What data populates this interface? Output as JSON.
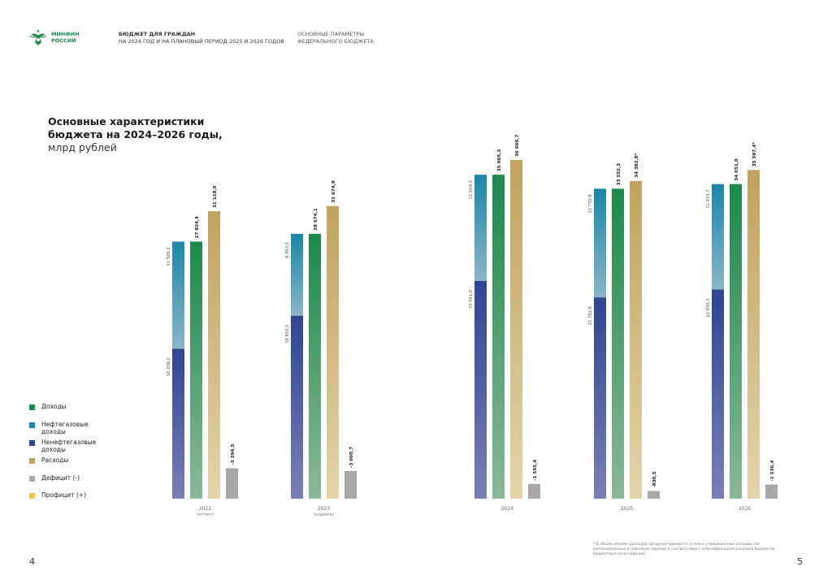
{
  "header": {
    "brand_line1": "МИНФИН",
    "brand_line2": "РОССИИ",
    "title_line1": "БЮДЖЕТ ДЛЯ ГРАЖДАН",
    "title_line2": "НА 2024 ГОД И НА ПЛАНОВЫЙ ПЕРИОД 2025 И 2026 ГОДОВ",
    "section_line1": "ОСНОВНЫЕ ПАРАМЕТРЫ",
    "section_line2": "ФЕДЕРАЛЬНОГО БЮДЖЕТА"
  },
  "title_line1": "Основные характеристики",
  "title_line2": "бюджета на 2024–2026 годы,",
  "unit": "млрд рублей",
  "legend": [
    {
      "label": "Доходы",
      "color": "#1b8a4a"
    },
    {
      "label": "Нефтегазовые доходы",
      "color": "#1a86a8"
    },
    {
      "label": "Ненефтегазовые доходы",
      "color": "#2e4592"
    },
    {
      "label": "Расходы",
      "color": "#c0a35e"
    },
    {
      "label": "Дефицит (-)",
      "color": "#a8a8ab"
    },
    {
      "label": "Профицит (+)",
      "color": "#f2c74b"
    }
  ],
  "footnote": "* В общем объеме расходов предусматриваются условно утвержденные расходы (не распределенные в плановом периоде в соответствии с классификацией расходов бюджетов бюджетные ассигнования)",
  "page_left": "4",
  "page_right": "5",
  "chart_data": {
    "type": "bar",
    "categories": [
      "2022",
      "2023",
      "2024",
      "2025",
      "2026"
    ],
    "category_notes": [
      "(отчет)",
      "(оценка)",
      "",
      "",
      ""
    ],
    "ylim": [
      0,
      36660.7
    ],
    "series": [
      {
        "name": "Нефтегазовые доходы",
        "values": [
          11586.2,
          8863.5,
          11504.3,
          11759.8,
          11414.7
        ],
        "labels": [
          "11 586,2",
          "8 863,5",
          "11 504,3",
          "11 759,8",
          "11 414,7"
        ]
      },
      {
        "name": "Ненефтегазовые доходы",
        "values": [
          16238.2,
          19810.5,
          23561.0,
          21792.6,
          22636.3
        ],
        "labels": [
          "16 238,2",
          "19 810,5",
          "23 561,0",
          "21 792,6",
          "22 636,3"
        ]
      },
      {
        "name": "Доходы",
        "values": [
          27824.4,
          28674.1,
          35065.3,
          33552.3,
          34051.0
        ],
        "labels": [
          "27 824,4",
          "28 674,1",
          "35 065,3",
          "33 552,3",
          "34 051,0"
        ]
      },
      {
        "name": "Расходы",
        "values": [
          31118.9,
          31674.8,
          36660.7,
          34382.8,
          35587.4
        ],
        "labels": [
          "31 118,9",
          "31 674,8",
          "36 660,7",
          "34 382,8*",
          "35 587,4*"
        ]
      },
      {
        "name": "Дефицит (-)",
        "values": [
          -3294.5,
          -3000.7,
          -1595.4,
          -830.5,
          -1536.4
        ],
        "labels": [
          "-3 294,5",
          "-3 000,7",
          "-1 595,4",
          "-830,5",
          "-1 536,4"
        ]
      }
    ]
  }
}
